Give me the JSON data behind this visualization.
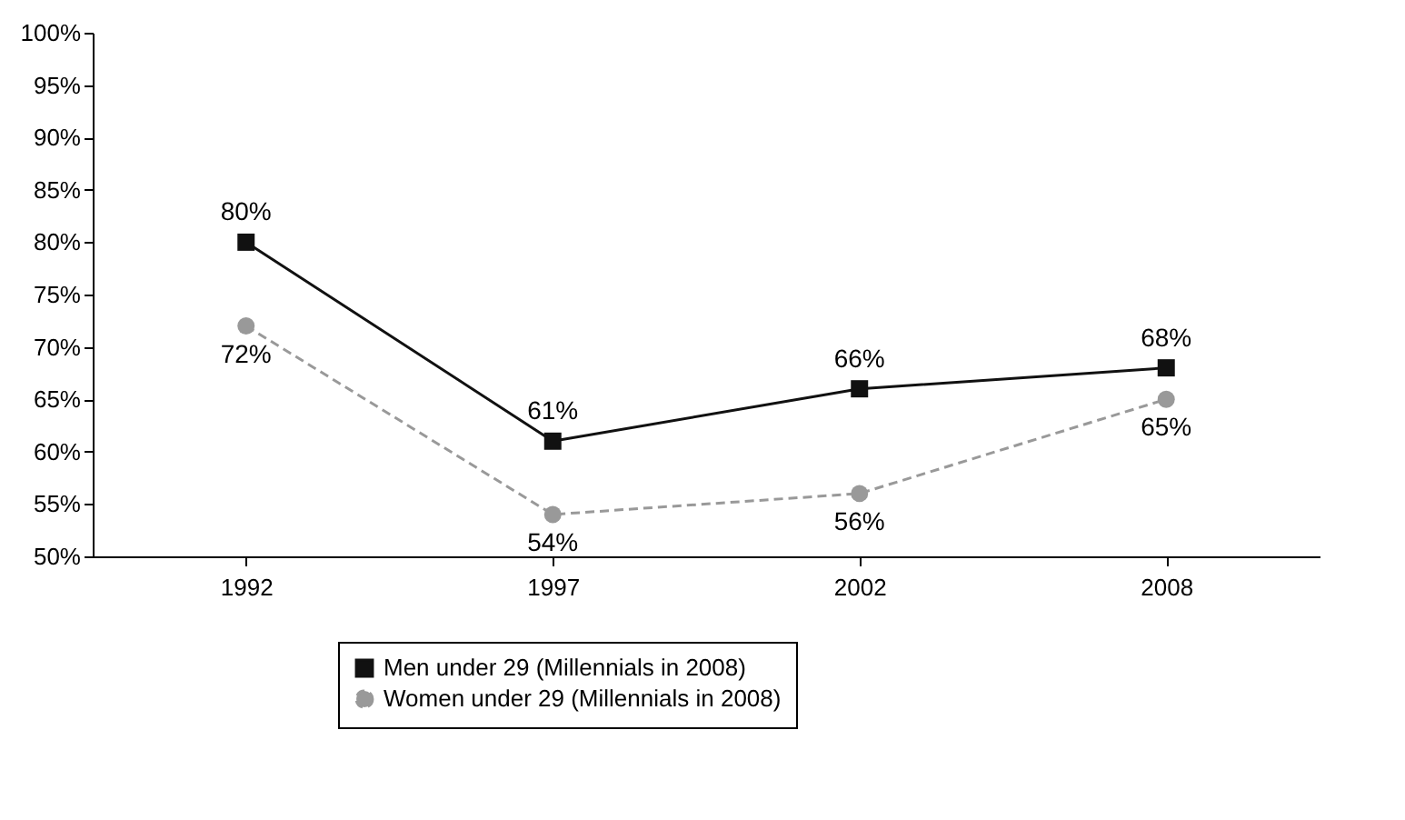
{
  "chart_data": {
    "type": "line",
    "categories": [
      "1992",
      "1997",
      "2002",
      "2008"
    ],
    "series": [
      {
        "name": "Men under 29 (Millennials in 2008)",
        "color": "#111111",
        "marker": "square",
        "line_style": "solid",
        "values": [
          80,
          61,
          66,
          68
        ],
        "value_labels": [
          "80%",
          "61%",
          "66%",
          "68%"
        ]
      },
      {
        "name": "Women under 29 (Millennials in 2008)",
        "color": "#999999",
        "marker": "circle",
        "line_style": "dashed",
        "values": [
          72,
          54,
          56,
          65
        ],
        "value_labels": [
          "72%",
          "54%",
          "56%",
          "65%"
        ]
      }
    ],
    "ylim": [
      50,
      100
    ],
    "yticks": [
      {
        "value": 50,
        "label": "50%"
      },
      {
        "value": 55,
        "label": "55%"
      },
      {
        "value": 60,
        "label": "60%"
      },
      {
        "value": 65,
        "label": "65%"
      },
      {
        "value": 70,
        "label": "70%"
      },
      {
        "value": 75,
        "label": "75%"
      },
      {
        "value": 80,
        "label": "80%"
      },
      {
        "value": 85,
        "label": "85%"
      },
      {
        "value": 90,
        "label": "90%"
      },
      {
        "value": 95,
        "label": "95%"
      },
      {
        "value": 100,
        "label": "100%"
      }
    ],
    "grid": false,
    "legend": "bottom"
  }
}
